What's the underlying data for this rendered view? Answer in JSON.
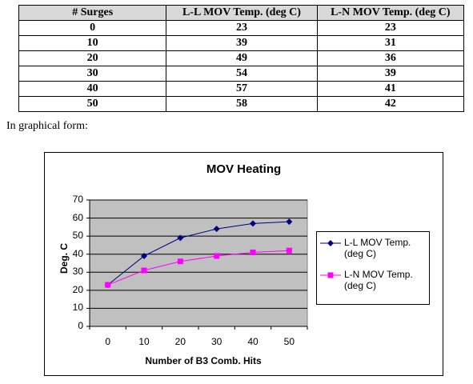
{
  "table": {
    "headers": [
      "# Surges",
      "L-L MOV Temp. (deg C)",
      "L-N MOV Temp. (deg C)"
    ],
    "rows": [
      [
        "0",
        "23",
        "23"
      ],
      [
        "10",
        "39",
        "31"
      ],
      [
        "20",
        "49",
        "36"
      ],
      [
        "30",
        "54",
        "39"
      ],
      [
        "40",
        "57",
        "41"
      ],
      [
        "50",
        "58",
        "42"
      ]
    ]
  },
  "caption": "In graphical form:",
  "chart_data": {
    "type": "line",
    "title": "MOV Heating",
    "xlabel": "Number of B3 Comb. Hits",
    "ylabel": "Deg. C",
    "x": [
      0,
      10,
      20,
      30,
      40,
      50
    ],
    "x_ticks": [
      "0",
      "10",
      "20",
      "30",
      "40",
      "50"
    ],
    "y_ticks": [
      "0",
      "10",
      "20",
      "30",
      "40",
      "50",
      "60",
      "70"
    ],
    "ylim": [
      0,
      70
    ],
    "grid": true,
    "plot_background": "#c0c0c0",
    "legend_position": "right",
    "series": [
      {
        "name": "L-L MOV Temp. (deg C)",
        "values": [
          23,
          39,
          49,
          54,
          57,
          58
        ],
        "color": "#000080",
        "marker": "diamond"
      },
      {
        "name": "L-N MOV Temp. (deg C)",
        "values": [
          23,
          31,
          36,
          39,
          41,
          42
        ],
        "color": "#ff00ff",
        "marker": "square"
      }
    ]
  }
}
